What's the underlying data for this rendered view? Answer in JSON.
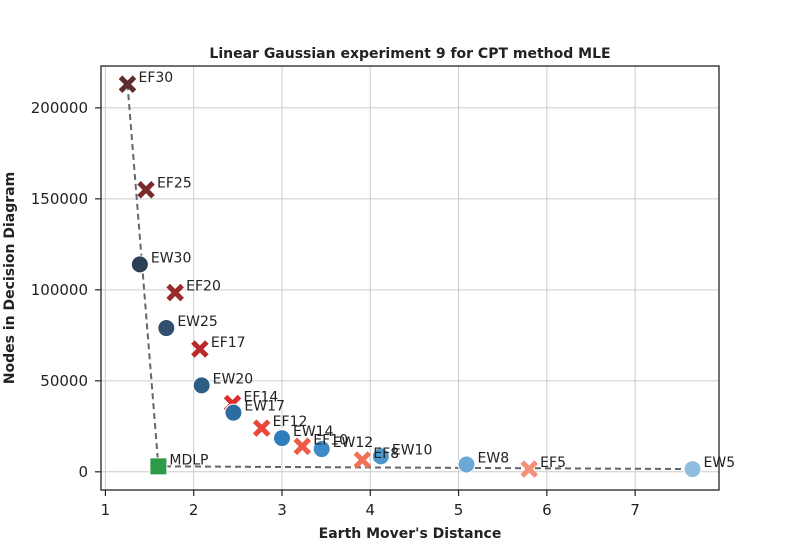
{
  "chart_data": {
    "type": "scatter",
    "title": "Linear Gaussian experiment 9 for CPT method MLE",
    "xlabel": "Earth Mover's Distance",
    "ylabel": "Nodes in Decision Diagram",
    "xlim": [
      0.95,
      7.95
    ],
    "ylim": [
      -10000,
      223000
    ],
    "xticks": [
      1,
      2,
      3,
      4,
      5,
      6,
      7
    ],
    "yticks": [
      0,
      50000,
      100000,
      150000,
      200000
    ],
    "grid": true,
    "points": [
      {
        "label": "EF30",
        "x": 1.25,
        "y": 213000,
        "marker": "x",
        "color": "#5c2e2e"
      },
      {
        "label": "EF25",
        "x": 1.46,
        "y": 155000,
        "marker": "x",
        "color": "#7a2a2a"
      },
      {
        "label": "EW30",
        "x": 1.39,
        "y": 114000,
        "marker": "circle",
        "color": "#2b3f55"
      },
      {
        "label": "EF20",
        "x": 1.79,
        "y": 98500,
        "marker": "x",
        "color": "#9b2b2b"
      },
      {
        "label": "EW25",
        "x": 1.69,
        "y": 79000,
        "marker": "circle",
        "color": "#2f506e"
      },
      {
        "label": "EF17",
        "x": 2.07,
        "y": 67500,
        "marker": "x",
        "color": "#b82a2a"
      },
      {
        "label": "EW20",
        "x": 2.09,
        "y": 47500,
        "marker": "circle",
        "color": "#2c5d85"
      },
      {
        "label": "EF14",
        "x": 2.44,
        "y": 37500,
        "marker": "x",
        "color": "#dd2e2e"
      },
      {
        "label": "EW17",
        "x": 2.45,
        "y": 32500,
        "marker": "circle",
        "color": "#2d6ca3"
      },
      {
        "label": "EF12",
        "x": 2.77,
        "y": 24000,
        "marker": "x",
        "color": "#e8473a"
      },
      {
        "label": "EW14",
        "x": 3.0,
        "y": 18500,
        "marker": "circle",
        "color": "#2f7dbd"
      },
      {
        "label": "EF10",
        "x": 3.23,
        "y": 14000,
        "marker": "x",
        "color": "#ee5a46"
      },
      {
        "label": "EW12",
        "x": 3.45,
        "y": 12500,
        "marker": "circle",
        "color": "#3d8ac6"
      },
      {
        "label": "EF8",
        "x": 3.91,
        "y": 6500,
        "marker": "x",
        "color": "#f07258"
      },
      {
        "label": "EW10",
        "x": 4.12,
        "y": 8500,
        "marker": "circle",
        "color": "#4e97cc"
      },
      {
        "label": "EW8",
        "x": 5.09,
        "y": 4000,
        "marker": "circle",
        "color": "#6aa8d6"
      },
      {
        "label": "EF5",
        "x": 5.8,
        "y": 1500,
        "marker": "x",
        "color": "#f4907a"
      },
      {
        "label": "EW5",
        "x": 7.65,
        "y": 1500,
        "marker": "circle",
        "color": "#8fbde0"
      },
      {
        "label": "MDLP",
        "x": 1.6,
        "y": 3000,
        "marker": "square",
        "color": "#2e9a4a"
      }
    ],
    "pareto_front": [
      {
        "x": 1.25,
        "y": 213000
      },
      {
        "x": 1.6,
        "y": 3000
      },
      {
        "x": 7.65,
        "y": 1500
      }
    ]
  }
}
